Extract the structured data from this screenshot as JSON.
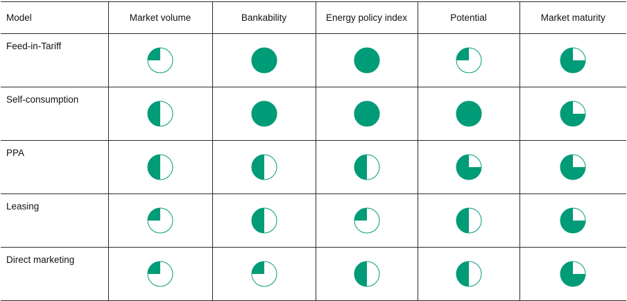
{
  "header": {
    "model": "Model",
    "columns": [
      "Market volume",
      "Bankability",
      "Energy policy index",
      "Potential",
      "Market maturity"
    ]
  },
  "colors": {
    "fill": "#009b77",
    "outline": "#009b77",
    "empty": "#ffffff"
  },
  "rows": [
    {
      "label": "Feed-in-Tariff",
      "ratings": [
        0.25,
        1.0,
        1.0,
        0.25,
        0.75
      ]
    },
    {
      "label": "Self-consumption",
      "ratings": [
        0.5,
        1.0,
        1.0,
        1.0,
        0.75
      ]
    },
    {
      "label": "PPA",
      "ratings": [
        0.5,
        0.5,
        0.5,
        0.75,
        0.75
      ]
    },
    {
      "label": "Leasing",
      "ratings": [
        0.25,
        0.5,
        0.25,
        0.5,
        0.75
      ]
    },
    {
      "label": "Direct marketing",
      "ratings": [
        0.25,
        0.25,
        0.5,
        0.5,
        0.75
      ]
    }
  ]
}
